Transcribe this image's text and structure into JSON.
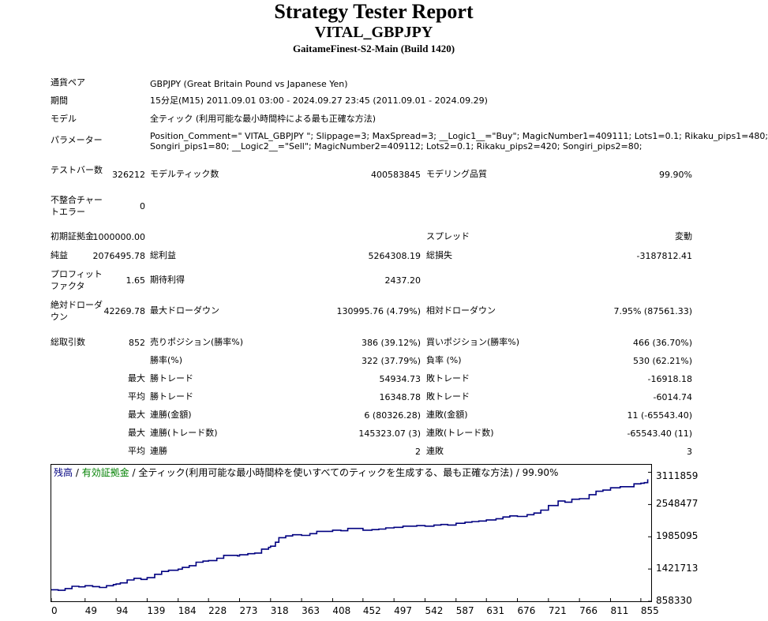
{
  "header": {
    "title": "Strategy Tester Report",
    "subtitle": "VITAL_GBPJPY",
    "build": "GaitameFinest-S2-Main (Build 1420)"
  },
  "settings": {
    "symbol_label": "通貨ペア",
    "symbol_value": "GBPJPY (Great Britain Pound vs Japanese Yen)",
    "period_label": "期間",
    "period_value": "15分足(M15) 2011.09.01 03:00 - 2024.09.27 23:45 (2011.09.01 - 2024.09.29)",
    "model_label": "モデル",
    "model_value": "全ティック (利用可能な最小時間枠による最も正確な方法)",
    "params_label": "パラメーター",
    "params_line1": "Position_Comment=\" VITAL_GBPJPY \"; Slippage=3; MaxSpread=3; __Logic1__=\"Buy\"; MagicNumber1=409111; Lots1=0.1; Rikaku_pips1=480;",
    "params_line2": "Songiri_pips1=80; __Logic2__=\"Sell\"; MagicNumber2=409112; Lots2=0.1; Rikaku_pips2=420; Songiri_pips2=80;"
  },
  "stats": {
    "bars_label": "テストバー数",
    "bars_value": "326212",
    "ticks_label": "モデルティック数",
    "ticks_value": "400583845",
    "quality_label": "モデリング品質",
    "quality_value": "99.90%",
    "mismatch_label": "不整合チャートエラー",
    "mismatch_value": "0",
    "deposit_label": "初期証拠金",
    "deposit_value": "1000000.00",
    "spread_label": "スプレッド",
    "spread_value": "変動",
    "net_label": "純益",
    "net_value": "2076495.78",
    "gross_profit_label": "総利益",
    "gross_profit_value": "5264308.19",
    "gross_loss_label": "総損失",
    "gross_loss_value": "-3187812.41",
    "pf_label": "プロフィットファクタ",
    "pf_value": "1.65",
    "expected_label": "期待利得",
    "expected_value": "2437.20",
    "abs_dd_label": "絶対ドローダウン",
    "abs_dd_value": "42269.78",
    "max_dd_label": "最大ドローダウン",
    "max_dd_value": "130995.76 (4.79%)",
    "rel_dd_label": "相対ドローダウン",
    "rel_dd_value": "7.95% (87561.33)",
    "total_trades_label": "総取引数",
    "total_trades_value": "852",
    "short_label": "売りポジション(勝率%)",
    "short_value": "386 (39.12%)",
    "long_label": "買いポジション(勝率%)",
    "long_value": "466 (36.70%)",
    "win_rate_label": "勝率(%)",
    "win_rate_value": "322 (37.79%)",
    "loss_rate_label": "負率 (%)",
    "loss_rate_value": "530 (62.21%)",
    "largest_prefix": "最大",
    "largest_win_label": "勝トレード",
    "largest_win_value": "54934.73",
    "largest_loss_label": "敗トレード",
    "largest_loss_value": "-16918.18",
    "average_prefix": "平均",
    "avg_win_label": "勝トレード",
    "avg_win_value": "16348.78",
    "avg_loss_label": "敗トレード",
    "avg_loss_value": "-6014.74",
    "max_prefix1": "最大",
    "cons_wins_money_label": "連勝(金額)",
    "cons_wins_money_value": "6 (80326.28)",
    "cons_losses_money_label": "連敗(金額)",
    "cons_losses_money_value": "11 (-65543.40)",
    "max_prefix2": "最大",
    "cons_wins_count_label": "連勝(トレード数)",
    "cons_wins_count_value": "145323.07 (3)",
    "cons_losses_count_label": "連敗(トレード数)",
    "cons_losses_count_value": "-65543.40 (11)",
    "avg_prefix2": "平均",
    "avg_cons_wins_label": "連勝",
    "avg_cons_wins_value": "2",
    "avg_cons_losses_label": "連敗",
    "avg_cons_losses_value": "3"
  },
  "chart_legend": {
    "balance": "残高",
    "sep1": " / ",
    "equity": "有効証拠金",
    "sep2": " / ",
    "rest": "全ティック(利用可能な最小時間枠を使いすべてのティックを生成する、最も正確な方法) / 99.90%"
  },
  "colors": {
    "balance": "#000080",
    "equity": "#008000",
    "axis": "#000000"
  },
  "chart_data": {
    "type": "line",
    "title": "",
    "xlabel": "",
    "ylabel": "",
    "x_ticks": [
      "0",
      "49",
      "94",
      "139",
      "184",
      "228",
      "273",
      "318",
      "363",
      "408",
      "452",
      "497",
      "542",
      "587",
      "631",
      "676",
      "721",
      "766",
      "811",
      "855"
    ],
    "y_ticks": [
      "3111859",
      "2548477",
      "1985095",
      "1421713",
      "858330"
    ],
    "xlim": [
      0,
      870
    ],
    "ylim": [
      858330,
      3243000
    ],
    "series": [
      {
        "name": "残高",
        "x": [
          0,
          10,
          20,
          30,
          40,
          49,
          60,
          70,
          80,
          90,
          94,
          100,
          110,
          120,
          130,
          139,
          150,
          160,
          170,
          180,
          184,
          190,
          200,
          210,
          220,
          228,
          240,
          250,
          260,
          270,
          273,
          285,
          295,
          305,
          315,
          318,
          325,
          330,
          340,
          350,
          363,
          375,
          385,
          395,
          408,
          420,
          430,
          440,
          452,
          465,
          475,
          485,
          497,
          510,
          520,
          530,
          542,
          555,
          565,
          575,
          587,
          600,
          610,
          620,
          631,
          645,
          655,
          665,
          676,
          690,
          700,
          710,
          721,
          735,
          745,
          755,
          766,
          780,
          790,
          800,
          811,
          825,
          835,
          845,
          855,
          860,
          865
        ],
        "y": [
          1060000,
          1050000,
          1080000,
          1120000,
          1110000,
          1130000,
          1115000,
          1100000,
          1130000,
          1150000,
          1160000,
          1180000,
          1230000,
          1260000,
          1240000,
          1270000,
          1330000,
          1380000,
          1400000,
          1400000,
          1420000,
          1450000,
          1480000,
          1540000,
          1560000,
          1570000,
          1610000,
          1660000,
          1660000,
          1650000,
          1670000,
          1690000,
          1700000,
          1770000,
          1800000,
          1820000,
          1890000,
          1970000,
          2000000,
          2020000,
          2010000,
          2040000,
          2080000,
          2080000,
          2100000,
          2090000,
          2130000,
          2130000,
          2100000,
          2110000,
          2120000,
          2140000,
          2150000,
          2170000,
          2170000,
          2180000,
          2170000,
          2190000,
          2200000,
          2190000,
          2220000,
          2240000,
          2250000,
          2260000,
          2280000,
          2300000,
          2330000,
          2350000,
          2340000,
          2370000,
          2400000,
          2450000,
          2530000,
          2610000,
          2590000,
          2640000,
          2650000,
          2720000,
          2780000,
          2800000,
          2840000,
          2860000,
          2860000,
          2910000,
          2920000,
          2930000,
          2990000
        ]
      }
    ],
    "grid": false,
    "legend": "top-left"
  }
}
